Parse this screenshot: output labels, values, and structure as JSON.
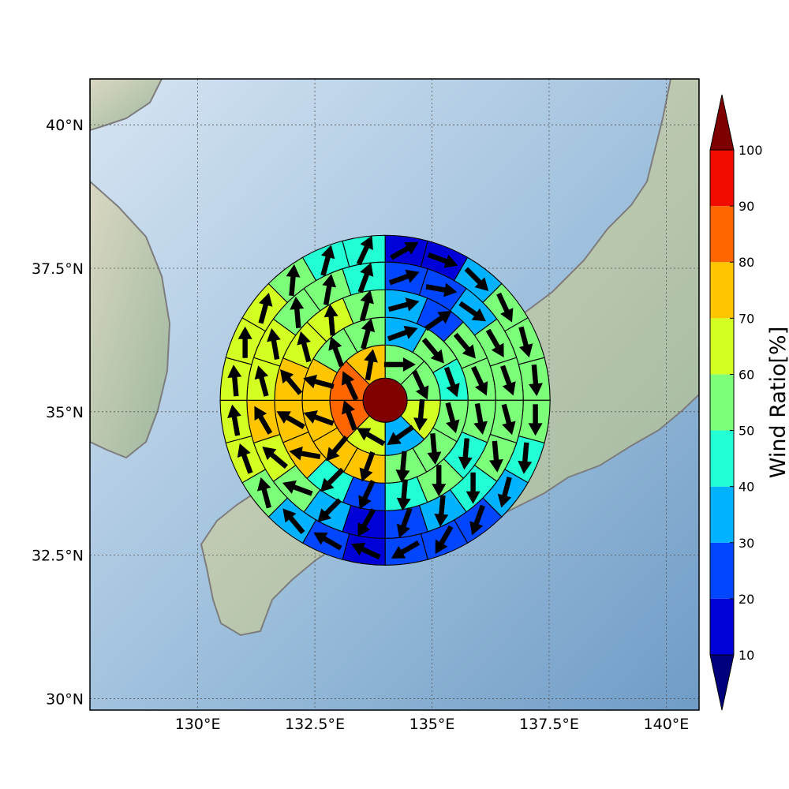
{
  "chart_data": {
    "type": "polar_sector_map",
    "map": {
      "lon_range": [
        127.7,
        140.7
      ],
      "lat_range": [
        29.8,
        40.8
      ],
      "lon_ticks": [
        "130°E",
        "132.5°E",
        "135°E",
        "137.5°E",
        "140°E"
      ],
      "lat_ticks": [
        "30°N",
        "32.5°N",
        "35°N",
        "37.5°N",
        "40°N"
      ],
      "gridlines": true,
      "land_color": "#c8d3b8",
      "ocean_color": "#8fb3d3",
      "coastline_color": "#808080"
    },
    "center": {
      "lon": 134.0,
      "lat": 35.2,
      "core_color": "#800000"
    },
    "rings": [
      {
        "inner": 0.47,
        "outer": 1.18,
        "sectors": 8
      },
      {
        "inner": 1.18,
        "outer": 1.77,
        "sectors": 12
      },
      {
        "inner": 1.77,
        "outer": 2.36,
        "sectors": 16
      },
      {
        "inner": 2.36,
        "outer": 2.95,
        "sectors": 20
      },
      {
        "inner": 2.95,
        "outer": 3.52,
        "sectors": 24
      }
    ],
    "wind_ratio": [
      [
        55,
        55,
        65,
        35,
        65,
        88,
        85,
        75
      ],
      [
        35,
        55,
        45,
        55,
        55,
        55,
        75,
        78,
        72,
        75,
        55,
        55
      ],
      [
        35,
        25,
        55,
        55,
        55,
        45,
        55,
        45,
        25,
        45,
        75,
        72,
        75,
        68,
        65,
        55
      ],
      [
        25,
        25,
        35,
        55,
        55,
        55,
        55,
        45,
        35,
        25,
        15,
        35,
        55,
        65,
        75,
        65,
        65,
        55,
        55,
        45
      ],
      [
        15,
        15,
        35,
        55,
        55,
        55,
        55,
        45,
        35,
        25,
        20,
        20,
        15,
        20,
        35,
        55,
        65,
        65,
        65,
        65,
        65,
        55,
        45,
        45
      ]
    ],
    "wind_dir_deg": [
      [
        90,
        155,
        185,
        235,
        300,
        340,
        335,
        10
      ],
      [
        70,
        140,
        160,
        165,
        175,
        185,
        200,
        220,
        290,
        285,
        340,
        15
      ],
      [
        75,
        55,
        140,
        155,
        170,
        185,
        180,
        185,
        205,
        225,
        280,
        300,
        320,
        345,
        355,
        15
      ],
      [
        70,
        100,
        125,
        150,
        160,
        165,
        175,
        180,
        185,
        200,
        210,
        225,
        290,
        310,
        330,
        345,
        350,
        355,
        10,
        20
      ],
      [
        60,
        110,
        135,
        155,
        165,
        175,
        180,
        185,
        195,
        200,
        210,
        240,
        295,
        300,
        320,
        345,
        340,
        350,
        355,
        0,
        15,
        5,
        15,
        25
      ]
    ],
    "colorbar": {
      "label": "Wind Ratio[%]",
      "ticks": [
        10,
        20,
        30,
        40,
        50,
        60,
        70,
        80,
        90,
        100
      ],
      "bins": [
        0,
        10,
        20,
        30,
        40,
        50,
        60,
        70,
        80,
        90,
        100,
        110
      ],
      "colors": [
        "#00007f",
        "#0000d8",
        "#0046ff",
        "#00b2ff",
        "#23ffd4",
        "#7cff79",
        "#d4ff23",
        "#ffc600",
        "#ff6600",
        "#f10c00",
        "#7f0000"
      ],
      "extend": "both"
    }
  }
}
